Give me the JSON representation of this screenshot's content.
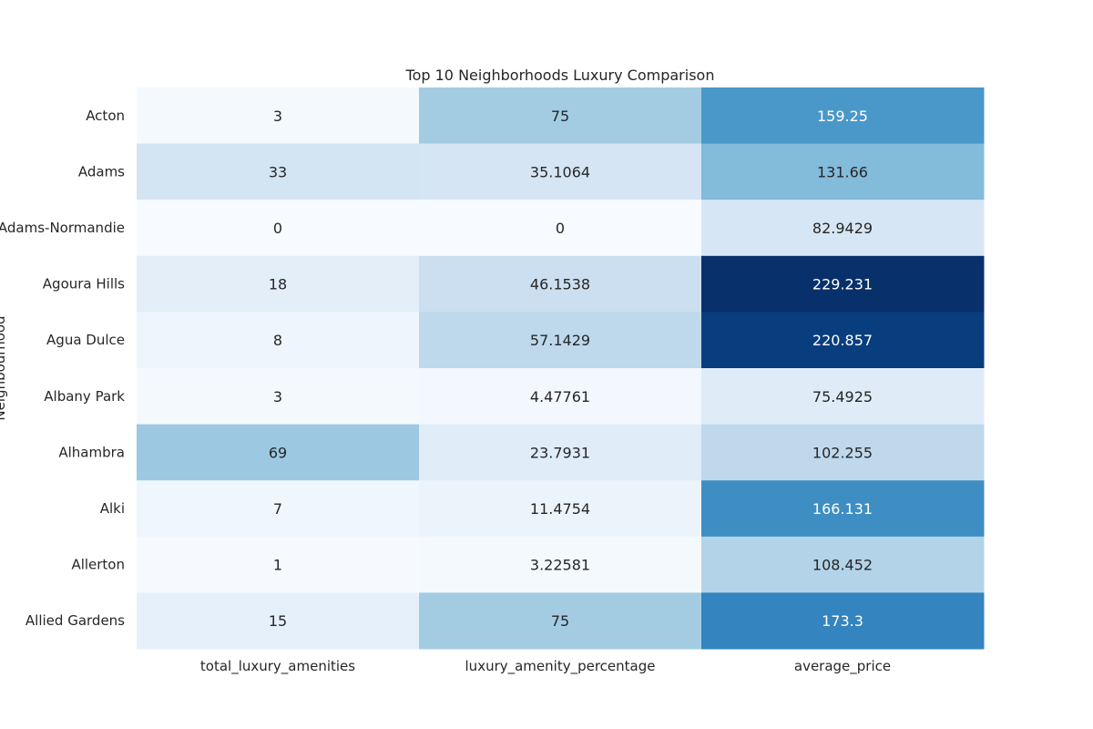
{
  "chart_data": {
    "type": "heatmap",
    "title": "Top 10 Neighborhoods Luxury Comparison",
    "ylabel": "Neighbourhood",
    "xlabel": "",
    "columns": [
      "total_luxury_amenities",
      "luxury_amenity_percentage",
      "average_price"
    ],
    "rows": [
      "Acton",
      "Adams",
      "Adams-Normandie",
      "Agoura Hills",
      "Agua Dulce",
      "Albany Park",
      "Alhambra",
      "Alki",
      "Allerton",
      "Allied Gardens"
    ],
    "values": [
      [
        "3",
        "75",
        "159.25"
      ],
      [
        "33",
        "35.1064",
        "131.66"
      ],
      [
        "0",
        "0",
        "82.9429"
      ],
      [
        "18",
        "46.1538",
        "229.231"
      ],
      [
        "8",
        "57.1429",
        "220.857"
      ],
      [
        "3",
        "4.47761",
        "75.4925"
      ],
      [
        "69",
        "23.7931",
        "102.255"
      ],
      [
        "7",
        "11.4754",
        "166.131"
      ],
      [
        "1",
        "3.22581",
        "108.452"
      ],
      [
        "15",
        "75",
        "173.3"
      ]
    ],
    "colormap": "Blues",
    "color_scale": "per-column",
    "grid": false,
    "legend": "none"
  }
}
